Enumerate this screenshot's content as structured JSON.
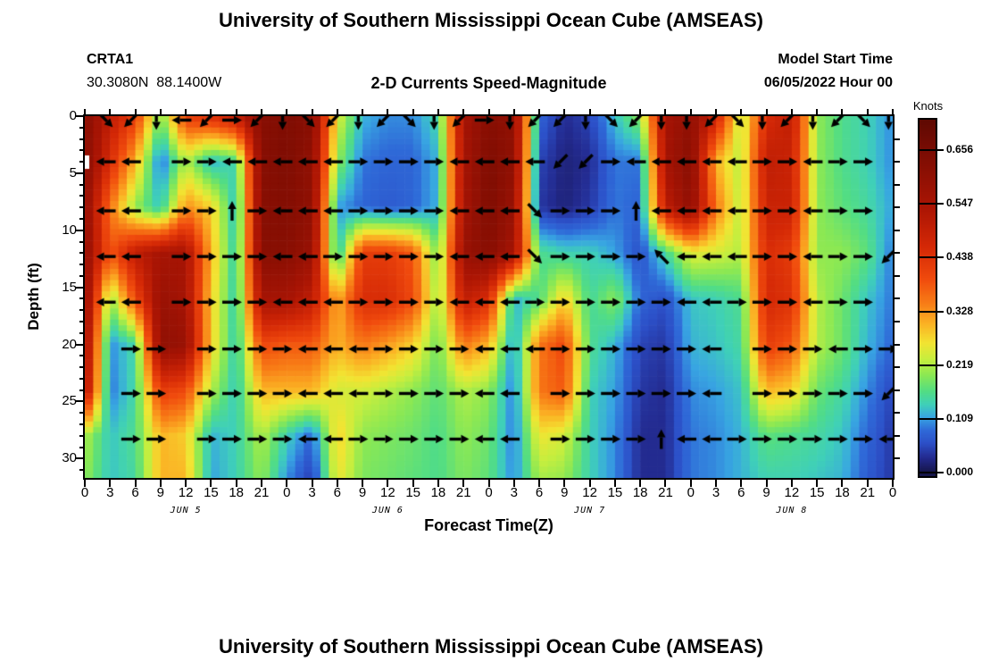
{
  "titles": {
    "top": "University of Southern Mississippi Ocean Cube (AMSEAS)",
    "bottom": "University of Southern Mississippi Ocean Cube (AMSEAS)"
  },
  "header": {
    "station_id": "CRTA1",
    "location": "30.3080N  88.1400W",
    "plot_title": "2-D Currents Speed-Magnitude",
    "model_start_label": "Model Start Time",
    "model_start_value": "06/05/2022 Hour 00"
  },
  "axes": {
    "x_label": "Forecast Time(Z)",
    "y_label": "Depth (ft)",
    "x_tick_labels": [
      "0",
      "3",
      "6",
      "9",
      "12",
      "15",
      "18",
      "21",
      "0",
      "3",
      "6",
      "9",
      "12",
      "15",
      "18",
      "21",
      "0",
      "3",
      "6",
      "9",
      "12",
      "15",
      "18",
      "21",
      "0",
      "3",
      "6",
      "9",
      "12",
      "15",
      "18",
      "21",
      "0"
    ],
    "y_tick_labels": [
      "0",
      "5",
      "10",
      "15",
      "20",
      "25",
      "30"
    ],
    "y_tick_values": [
      0,
      5,
      10,
      15,
      20,
      25,
      30
    ],
    "day_labels": [
      {
        "label": "JUN 5",
        "hour": 12
      },
      {
        "label": "JUN 6",
        "hour": 36
      },
      {
        "label": "JUN 7",
        "hour": 60
      },
      {
        "label": "JUN 8",
        "hour": 84
      }
    ]
  },
  "colorbar": {
    "label": "Knots",
    "tick_labels": [
      "0.656",
      "0.547",
      "0.438",
      "0.328",
      "0.219",
      "0.109",
      "0.000"
    ],
    "tick_values": [
      0.656,
      0.547,
      0.438,
      0.328,
      0.219,
      0.109,
      0.0
    ]
  },
  "chart_data": {
    "type": "heatmap",
    "title": "2-D Currents Speed-Magnitude",
    "station": "CRTA1",
    "location": "30.3080N 88.1400W",
    "model_start": "06/05/2022 Hour 00",
    "units": "Knots",
    "xlabel": "Forecast Time(Z)",
    "ylabel": "Depth (ft)",
    "x_hours": [
      0,
      3,
      6,
      9,
      12,
      15,
      18,
      21,
      24,
      27,
      30,
      33,
      36,
      39,
      42,
      45,
      48,
      51,
      54,
      57,
      60,
      63,
      66,
      69,
      72,
      75,
      78,
      81,
      84,
      87,
      90,
      93,
      96
    ],
    "x_days": [
      "JUN 5",
      "JUN 6",
      "JUN 7",
      "JUN 8"
    ],
    "depths_ft": [
      0,
      4,
      8,
      12,
      16,
      20,
      24,
      28,
      32
    ],
    "depth_axis_max_ft": 31.7,
    "value_range": [
      0,
      0.656
    ],
    "colorbar_top_value": 0.716,
    "colorbar_bottom_value": -0.009,
    "speed_grid_knots": [
      [
        0.62,
        0.5,
        0.42,
        0.18,
        0.42,
        0.45,
        0.5,
        0.62,
        0.64,
        0.62,
        0.25,
        0.12,
        0.1,
        0.1,
        0.15,
        0.55,
        0.62,
        0.6,
        0.08,
        0.03,
        0.05,
        0.13,
        0.2,
        0.55,
        0.6,
        0.48,
        0.22,
        0.45,
        0.5,
        0.2,
        0.16,
        0.14,
        0.1
      ],
      [
        0.62,
        0.45,
        0.3,
        0.08,
        0.22,
        0.12,
        0.15,
        0.62,
        0.64,
        0.6,
        0.2,
        0.09,
        0.08,
        0.08,
        0.12,
        0.55,
        0.64,
        0.6,
        0.05,
        0.02,
        0.03,
        0.09,
        0.09,
        0.55,
        0.62,
        0.3,
        0.22,
        0.5,
        0.48,
        0.2,
        0.16,
        0.14,
        0.1
      ],
      [
        0.6,
        0.35,
        0.2,
        0.13,
        0.33,
        0.28,
        0.12,
        0.62,
        0.63,
        0.6,
        0.11,
        0.08,
        0.07,
        0.08,
        0.12,
        0.55,
        0.64,
        0.58,
        0.04,
        0.02,
        0.04,
        0.09,
        0.08,
        0.5,
        0.6,
        0.35,
        0.22,
        0.48,
        0.48,
        0.2,
        0.17,
        0.15,
        0.11
      ],
      [
        0.6,
        0.38,
        0.5,
        0.55,
        0.55,
        0.3,
        0.13,
        0.62,
        0.62,
        0.58,
        0.12,
        0.42,
        0.42,
        0.38,
        0.18,
        0.58,
        0.62,
        0.55,
        0.16,
        0.14,
        0.14,
        0.11,
        0.06,
        0.15,
        0.25,
        0.24,
        0.22,
        0.45,
        0.42,
        0.2,
        0.2,
        0.17,
        0.09
      ],
      [
        0.6,
        0.2,
        0.4,
        0.58,
        0.55,
        0.28,
        0.13,
        0.55,
        0.55,
        0.5,
        0.3,
        0.45,
        0.45,
        0.4,
        0.2,
        0.5,
        0.45,
        0.12,
        0.16,
        0.28,
        0.15,
        0.2,
        0.08,
        0.06,
        0.13,
        0.14,
        0.16,
        0.46,
        0.44,
        0.22,
        0.18,
        0.13,
        0.09
      ],
      [
        0.58,
        0.1,
        0.15,
        0.6,
        0.58,
        0.28,
        0.13,
        0.4,
        0.38,
        0.38,
        0.3,
        0.35,
        0.32,
        0.28,
        0.18,
        0.35,
        0.3,
        0.1,
        0.35,
        0.4,
        0.16,
        0.12,
        0.05,
        0.04,
        0.12,
        0.13,
        0.15,
        0.42,
        0.38,
        0.22,
        0.18,
        0.12,
        0.08
      ],
      [
        0.55,
        0.09,
        0.15,
        0.42,
        0.4,
        0.22,
        0.13,
        0.3,
        0.3,
        0.3,
        0.24,
        0.24,
        0.22,
        0.2,
        0.17,
        0.22,
        0.2,
        0.09,
        0.35,
        0.38,
        0.14,
        0.11,
        0.04,
        0.03,
        0.1,
        0.11,
        0.13,
        0.3,
        0.28,
        0.18,
        0.15,
        0.1,
        0.05
      ],
      [
        0.22,
        0.13,
        0.16,
        0.3,
        0.28,
        0.12,
        0.14,
        0.22,
        0.14,
        0.08,
        0.28,
        0.2,
        0.19,
        0.18,
        0.16,
        0.2,
        0.18,
        0.09,
        0.26,
        0.24,
        0.14,
        0.1,
        0.03,
        0.03,
        0.09,
        0.1,
        0.12,
        0.17,
        0.16,
        0.15,
        0.13,
        0.08,
        0.04
      ],
      [
        0.2,
        0.13,
        0.15,
        0.3,
        0.3,
        0.11,
        0.14,
        0.2,
        0.1,
        0.04,
        0.26,
        0.19,
        0.18,
        0.17,
        0.16,
        0.19,
        0.17,
        0.1,
        0.21,
        0.2,
        0.14,
        0.1,
        0.03,
        0.03,
        0.09,
        0.1,
        0.12,
        0.14,
        0.14,
        0.13,
        0.12,
        0.07,
        0.04
      ]
    ],
    "arrows": {
      "slot_hours_start": 2.5,
      "slot_hours_step": 3,
      "rows": [
        {
          "depth_ft": 0.35,
          "dirs": [
            "DR",
            "DL",
            "D",
            "L",
            "DL",
            "R",
            "DL",
            "D",
            "DR",
            "DL",
            "D",
            "DL",
            "DR",
            "D",
            "DL",
            "R",
            "D",
            "DL",
            "DL",
            "D",
            "DR",
            "DL",
            "D",
            "D",
            "DL",
            "DR",
            "D",
            "DL",
            "D",
            "DL",
            "DR",
            "D"
          ]
        },
        {
          "depth_ft": 4.0,
          "dirs": [
            "L",
            "L",
            null,
            "R",
            "R",
            "L",
            "L",
            "L",
            "L",
            "L",
            "R",
            "R",
            "R",
            "R",
            "L",
            "L",
            "L",
            "L",
            "DL",
            "DL",
            "R",
            "L",
            "L",
            "L",
            "L",
            "L",
            "R",
            "R",
            "L",
            "R",
            "R",
            null
          ]
        },
        {
          "depth_ft": 8.3,
          "dirs": [
            "L",
            "L",
            null,
            "R",
            "R",
            "U",
            "R",
            "L",
            "L",
            "L",
            "R",
            "R",
            "R",
            "R",
            "L",
            "L",
            "L",
            "DR",
            "R",
            "R",
            "R",
            "U",
            "L",
            "L",
            "L",
            "L",
            "R",
            "R",
            "L",
            "R",
            "R",
            null
          ]
        },
        {
          "depth_ft": 12.3,
          "dirs": [
            "L",
            "L",
            null,
            "R",
            "R",
            "R",
            "R",
            "L",
            "L",
            "R",
            "R",
            "R",
            "R",
            "R",
            "L",
            "L",
            "L",
            "DR",
            "R",
            "R",
            "R",
            "R",
            "UL",
            "L",
            "L",
            "L",
            "R",
            "R",
            "L",
            "R",
            "R",
            "DL"
          ]
        },
        {
          "depth_ft": 16.3,
          "dirs": [
            "L",
            "L",
            null,
            "R",
            "R",
            "R",
            "R",
            "L",
            "L",
            "L",
            "R",
            "R",
            "R",
            "R",
            "L",
            "L",
            "L",
            "R",
            "R",
            "R",
            "R",
            "R",
            "R",
            "L",
            "L",
            "R",
            "R",
            "R",
            "L",
            "R",
            "R",
            null
          ]
        },
        {
          "depth_ft": 20.4,
          "dirs": [
            null,
            "R",
            "R",
            null,
            "R",
            "R",
            "R",
            "R",
            "L",
            "L",
            "L",
            "R",
            "R",
            "R",
            "R",
            "L",
            "L",
            "L",
            "R",
            "R",
            "R",
            "R",
            "R",
            "R",
            "L",
            null,
            "R",
            "R",
            "R",
            "L",
            "R",
            "R"
          ]
        },
        {
          "depth_ft": 24.3,
          "dirs": [
            null,
            "R",
            "R",
            null,
            "R",
            "R",
            "R",
            "R",
            "L",
            "L",
            "L",
            "R",
            "R",
            "R",
            "R",
            "L",
            "L",
            null,
            "R",
            "R",
            "R",
            "R",
            "R",
            "R",
            "L",
            null,
            "R",
            "R",
            "R",
            "R",
            "R",
            "DL"
          ]
        },
        {
          "depth_ft": 28.3,
          "dirs": [
            null,
            "R",
            "R",
            null,
            "R",
            "R",
            "R",
            "R",
            "L",
            "L",
            "R",
            "R",
            "R",
            "R",
            "R",
            "L",
            "L",
            null,
            "R",
            "R",
            "R",
            "R",
            "U",
            "L",
            "L",
            "R",
            "R",
            "R",
            "R",
            "R",
            "R",
            "L"
          ]
        }
      ]
    },
    "colormap_stops": [
      [
        0.0,
        "#16164a"
      ],
      [
        0.045,
        "#232a8f"
      ],
      [
        0.09,
        "#2c50c8"
      ],
      [
        0.13,
        "#2f6ad8"
      ],
      [
        0.17,
        "#38a5e2"
      ],
      [
        0.21,
        "#3fd0b8"
      ],
      [
        0.25,
        "#52dd84"
      ],
      [
        0.3,
        "#8ae854"
      ],
      [
        0.35,
        "#c6ee3e"
      ],
      [
        0.4,
        "#f2e432"
      ],
      [
        0.46,
        "#fbb224"
      ],
      [
        0.52,
        "#f87f17"
      ],
      [
        0.6,
        "#f04a0d"
      ],
      [
        0.7,
        "#d42806"
      ],
      [
        0.82,
        "#ab1504"
      ],
      [
        1.0,
        "#790c03"
      ],
      [
        1.12,
        "#570802"
      ]
    ]
  }
}
